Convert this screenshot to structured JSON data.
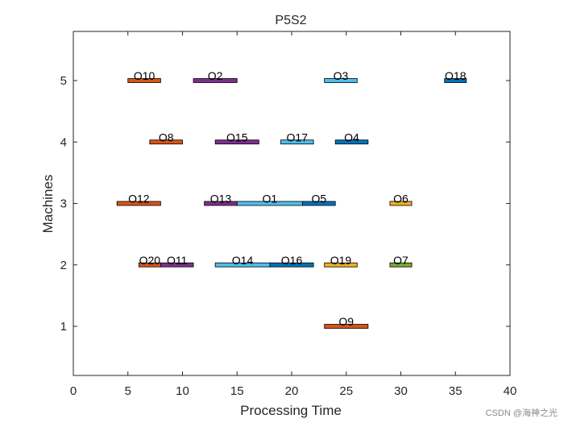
{
  "chart_data": {
    "type": "gantt",
    "title": "P5S2",
    "xlabel": "Processing Time",
    "ylabel": "Machines",
    "xlim": [
      0,
      40
    ],
    "ylim": [
      0.2,
      5.8
    ],
    "xticks": [
      0,
      5,
      10,
      15,
      20,
      25,
      30,
      35,
      40
    ],
    "yticks": [
      1,
      2,
      3,
      4,
      5
    ],
    "grid": false,
    "tasks": [
      {
        "name": "O10",
        "machine": 5,
        "start": 5,
        "end": 8,
        "color": "#D95319"
      },
      {
        "name": "O2",
        "machine": 5,
        "start": 11,
        "end": 15,
        "color": "#7E2F8E"
      },
      {
        "name": "O3",
        "machine": 5,
        "start": 23,
        "end": 26,
        "color": "#4DBEEE"
      },
      {
        "name": "O18",
        "machine": 5,
        "start": 34,
        "end": 36,
        "color": "#0072BD"
      },
      {
        "name": "O8",
        "machine": 4,
        "start": 7,
        "end": 10,
        "color": "#D95319"
      },
      {
        "name": "O15",
        "machine": 4,
        "start": 13,
        "end": 17,
        "color": "#7E2F8E"
      },
      {
        "name": "O17",
        "machine": 4,
        "start": 19,
        "end": 22,
        "color": "#4DBEEE"
      },
      {
        "name": "O4",
        "machine": 4,
        "start": 24,
        "end": 27,
        "color": "#0072BD"
      },
      {
        "name": "O12",
        "machine": 3,
        "start": 4,
        "end": 8,
        "color": "#D95319"
      },
      {
        "name": "O13",
        "machine": 3,
        "start": 12,
        "end": 15,
        "color": "#7E2F8E"
      },
      {
        "name": "O1",
        "machine": 3,
        "start": 15,
        "end": 21,
        "color": "#4DBEEE"
      },
      {
        "name": "O5",
        "machine": 3,
        "start": 21,
        "end": 24,
        "color": "#0072BD"
      },
      {
        "name": "O6",
        "machine": 3,
        "start": 29,
        "end": 31,
        "color": "#EDB120"
      },
      {
        "name": "O20",
        "machine": 2,
        "start": 6,
        "end": 8,
        "color": "#D95319"
      },
      {
        "name": "O11",
        "machine": 2,
        "start": 8,
        "end": 11,
        "color": "#7E2F8E"
      },
      {
        "name": "O14",
        "machine": 2,
        "start": 13,
        "end": 18,
        "color": "#4DBEEE"
      },
      {
        "name": "O16",
        "machine": 2,
        "start": 18,
        "end": 22,
        "color": "#0072BD"
      },
      {
        "name": "O19",
        "machine": 2,
        "start": 23,
        "end": 26,
        "color": "#EDB120"
      },
      {
        "name": "O7",
        "machine": 2,
        "start": 29,
        "end": 31,
        "color": "#77AC30"
      },
      {
        "name": "O9",
        "machine": 1,
        "start": 23,
        "end": 27,
        "color": "#D95319"
      }
    ]
  },
  "watermark": "CSDN @海神之光"
}
